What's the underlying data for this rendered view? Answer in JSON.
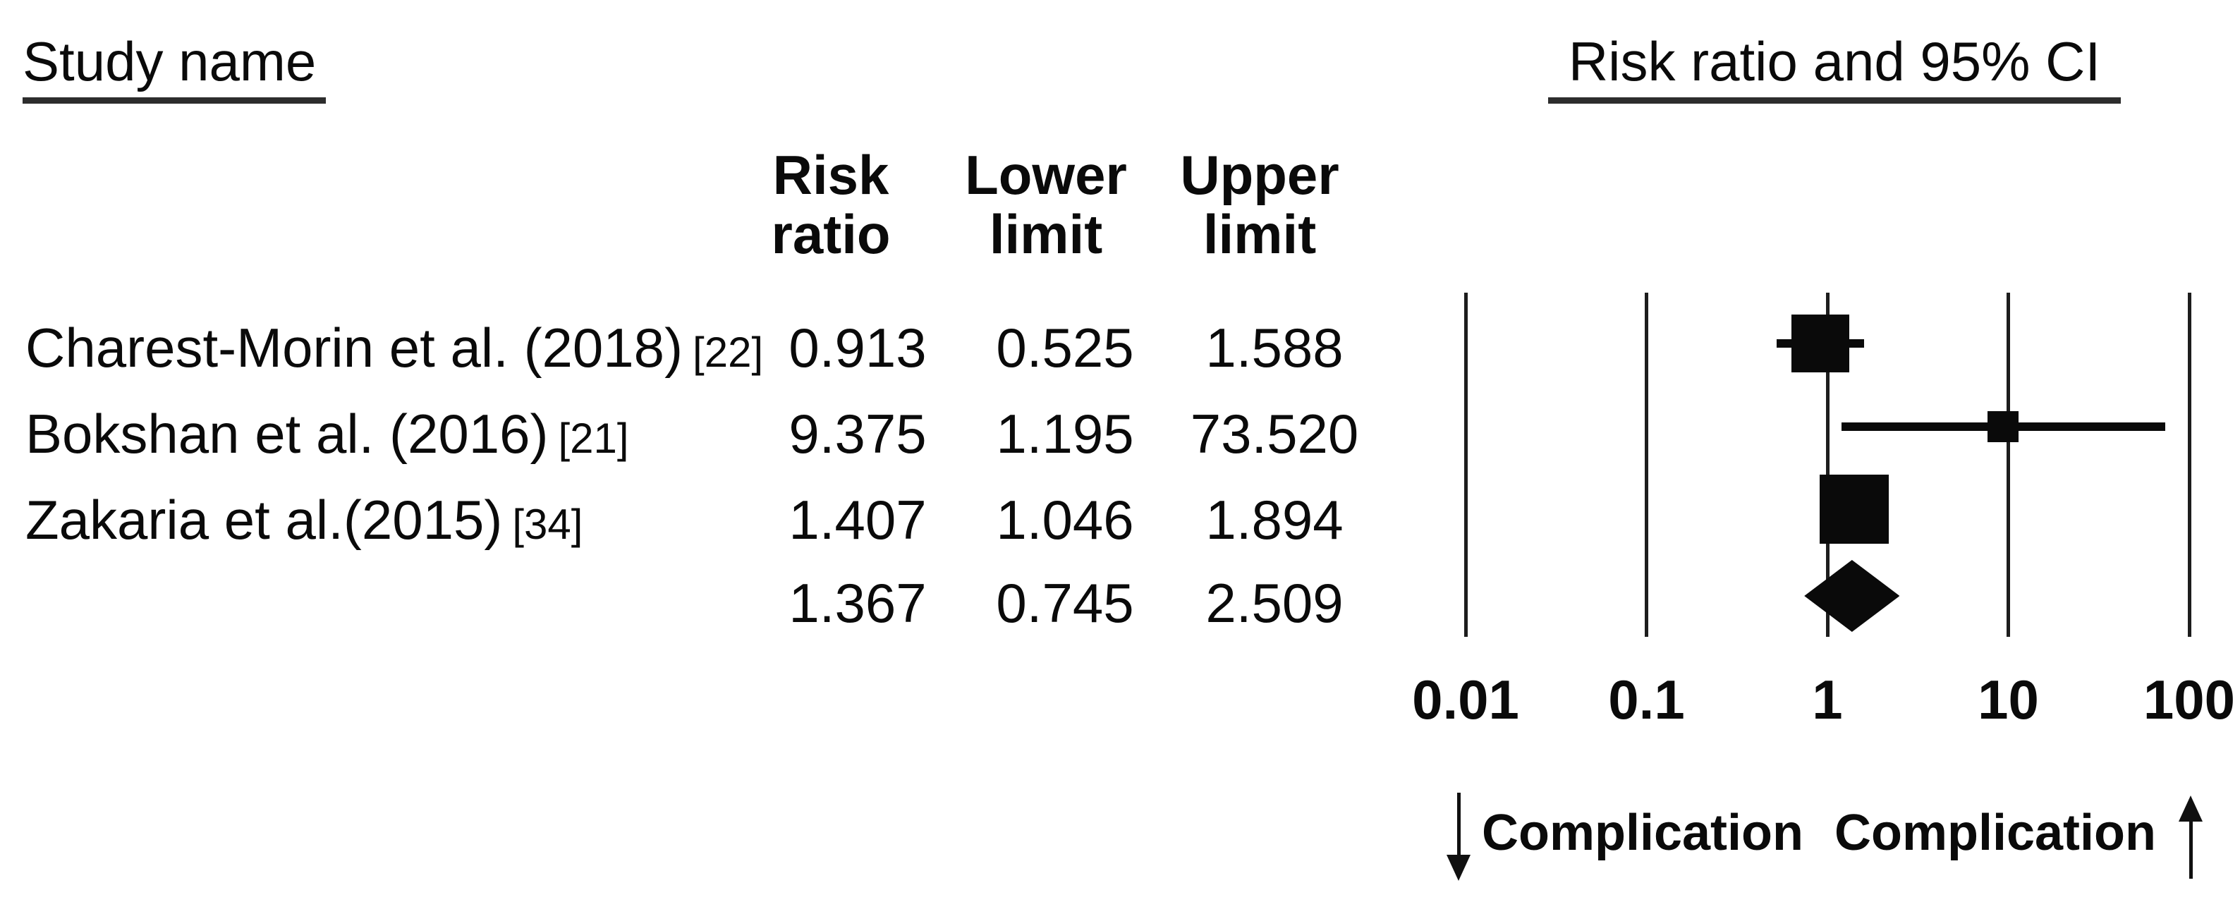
{
  "left_header": "Study name",
  "right_header": "Risk ratio and 95% CI",
  "table": {
    "columns": [
      {
        "line1": "Risk",
        "line2": "ratio"
      },
      {
        "line1": "Lower",
        "line2": "limit"
      },
      {
        "line1": "Upper",
        "line2": "limit"
      }
    ]
  },
  "chart_data": {
    "type": "forest",
    "x_scale": "log10",
    "axis": {
      "min": 0.01,
      "max": 100,
      "ticks": [
        "0.01",
        "0.1",
        "1",
        "10",
        "100"
      ]
    },
    "studies": [
      {
        "name": "Charest-Morin et al. (2018)",
        "ref": "[22]",
        "risk_ratio": "0.913",
        "lower_limit": "0.525",
        "upper_limit": "1.588",
        "marker_size": 82
      },
      {
        "name": "Bokshan et al. (2016)",
        "ref": "[21]",
        "risk_ratio": "9.375",
        "lower_limit": "1.195",
        "upper_limit": "73.520",
        "marker_size": 44
      },
      {
        "name": "Zakaria et al.(2015)",
        "ref": "[34]",
        "risk_ratio": "1.407",
        "lower_limit": "1.046",
        "upper_limit": "1.894",
        "marker_size": 98
      }
    ],
    "summary": {
      "risk_ratio": "1.367",
      "lower_limit": "0.745",
      "upper_limit": "2.509",
      "marker": "diamond"
    },
    "footer": {
      "left_label": "Complication",
      "right_label": "Complication",
      "left_arrow": "down",
      "right_arrow": "up"
    }
  },
  "colors": {
    "ink": "#0a0a0a",
    "background": "#ffffff"
  }
}
